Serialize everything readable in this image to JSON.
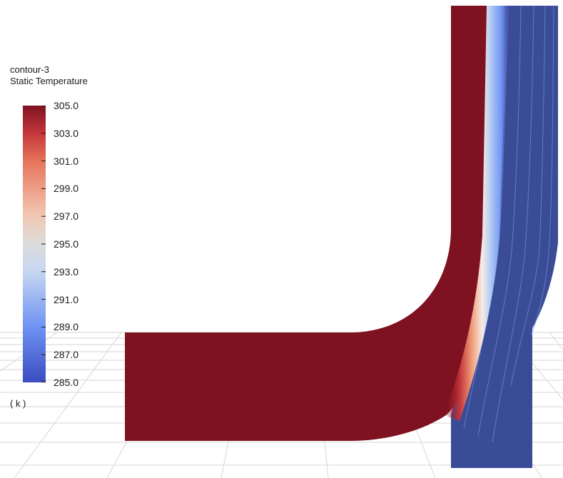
{
  "legend": {
    "name": "contour-3",
    "quantity": "Static Temperature",
    "units": "( k )"
  },
  "chart_data": {
    "type": "heatmap",
    "title": "contour-3",
    "subtitle": "Static Temperature",
    "colorbar": {
      "min": 285.0,
      "max": 305.0,
      "ticks": [
        "305.0",
        "303.0",
        "301.0",
        "299.0",
        "297.0",
        "295.0",
        "293.0",
        "291.0",
        "289.0",
        "287.0",
        "285.0"
      ],
      "units": "( k )",
      "colormap_stops": [
        {
          "value": 285.0,
          "color": "#3b4cc0"
        },
        {
          "value": 289.0,
          "color": "#6f92f3"
        },
        {
          "value": 293.0,
          "color": "#c6d6f1"
        },
        {
          "value": 295.0,
          "color": "#dddcdc"
        },
        {
          "value": 297.0,
          "color": "#f2c8b4"
        },
        {
          "value": 301.0,
          "color": "#e7745b"
        },
        {
          "value": 303.0,
          "color": "#c3363a"
        },
        {
          "value": 305.0,
          "color": "#7f1221"
        }
      ]
    },
    "regions": [
      {
        "name": "hot-inlet-bend",
        "temperature": 305.0
      },
      {
        "name": "cold-vertical-channel",
        "temperature": 285.0
      }
    ],
    "grid": true,
    "legend_placement": "left"
  },
  "colors": {
    "hot": "#7f1221",
    "cold": "#3b4c97",
    "grid": "#d4d4d4"
  }
}
